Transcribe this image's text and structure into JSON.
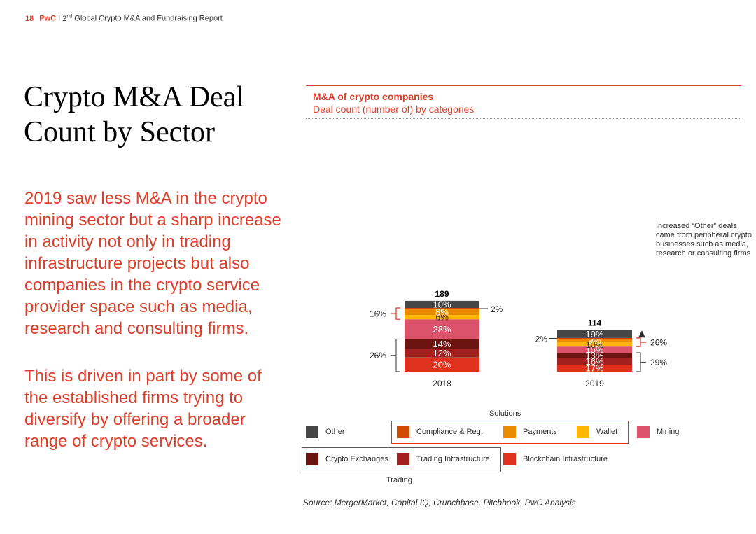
{
  "header": {
    "page_number": "18",
    "brand": "PwC",
    "separator": "I",
    "ordinal_number": "2",
    "ordinal_suffix": "nd",
    "report_title": "Global Crypto M&A and Fundraising Report"
  },
  "title": "Crypto M&A Deal Count by Sector",
  "body": {
    "paragraph1": "2019 saw less M&A in the crypto mining sector but a sharp increase in activity not only in trading infrastructure projects but also companies in the crypto service provider space such as media, research and consulting firms.",
    "paragraph2": "This is driven in part by some of the established firms trying to diversify by offering a broader range of crypto services."
  },
  "chart_data": {
    "type": "bar",
    "stacked": true,
    "normalized": "percent",
    "title": "M&A of crypto companies",
    "subtitle": "Deal count (number of) by categories",
    "categories": [
      "2018",
      "2019"
    ],
    "totals": [
      189,
      114
    ],
    "series": [
      {
        "name": "Blockchain Infrastructure",
        "color": "#e0301e",
        "values": [
          20,
          17
        ],
        "labels": [
          "20%",
          "17%"
        ]
      },
      {
        "name": "Trading Infrastructure",
        "color": "#a32020",
        "values": [
          12,
          16
        ],
        "labels": [
          "12%",
          "16%"
        ]
      },
      {
        "name": "Crypto Exchanges",
        "color": "#6b1410",
        "values": [
          14,
          13
        ],
        "labels": [
          "14%",
          "13%"
        ]
      },
      {
        "name": "Mining",
        "color": "#db536a",
        "values": [
          28,
          15
        ],
        "labels": [
          "28%",
          "15%"
        ]
      },
      {
        "name": "Wallet",
        "color": "#ffb600",
        "values": [
          6,
          10
        ],
        "labels": [
          "6%",
          "10%"
        ]
      },
      {
        "name": "Payments",
        "color": "#eb8c00",
        "values": [
          8,
          9
        ],
        "labels": [
          "8%",
          "9%"
        ]
      },
      {
        "name": "Compliance & Reg.",
        "color": "#d04a02",
        "values": [
          2,
          2
        ],
        "labels": [
          "2%",
          "2%"
        ]
      },
      {
        "name": "Other",
        "color": "#464646",
        "values": [
          10,
          19
        ],
        "labels": [
          "10%",
          "19%"
        ]
      }
    ],
    "group_brackets": [
      {
        "category": "2018",
        "group": "Solutions",
        "label": "16%",
        "side": "left"
      },
      {
        "category": "2018",
        "group": "Trading",
        "label": "26%",
        "side": "left"
      },
      {
        "category": "2019",
        "group": "Solutions",
        "label": "26%",
        "side": "right"
      },
      {
        "category": "2019",
        "group": "Trading",
        "label": "29%",
        "side": "right"
      }
    ],
    "annotation": "Increased “Other” deals came from peripheral crypto businesses such as media, research or consulting firms"
  },
  "legend": {
    "solutions_label": "Solutions",
    "trading_label": "Trading",
    "items": {
      "other": {
        "label": "Other",
        "color": "#464646"
      },
      "compliance": {
        "label": "Compliance & Reg.",
        "color": "#d04a02"
      },
      "payments": {
        "label": "Payments",
        "color": "#eb8c00"
      },
      "wallet": {
        "label": "Wallet",
        "color": "#ffb600"
      },
      "mining": {
        "label": "Mining",
        "color": "#db536a"
      },
      "exchanges": {
        "label": "Crypto Exchanges",
        "color": "#6b1410"
      },
      "trading_infra": {
        "label": "Trading Infrastructure",
        "color": "#a32020"
      },
      "blockchain": {
        "label": "Blockchain Infrastructure",
        "color": "#e0301e"
      }
    }
  },
  "source": "Source: MergerMarket, Capital IQ, Crunchbase, Pitchbook, PwC Analysis"
}
